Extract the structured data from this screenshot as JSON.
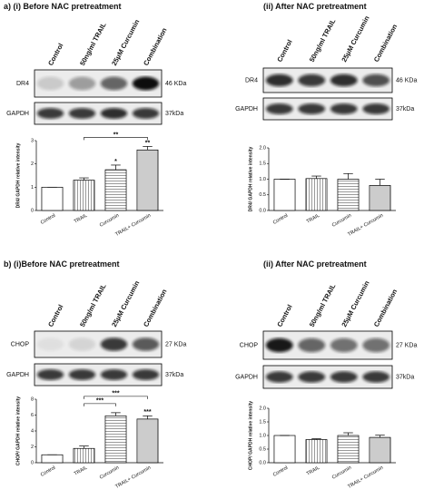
{
  "panels": [
    {
      "title": "a) (i) Before NAC pretreatment",
      "lanes": [
        "Control",
        "50ng/ml TRAIL",
        "25μM Curcumin",
        "Combination"
      ],
      "blots": [
        {
          "label": "DR4",
          "size": "46 KDa"
        },
        {
          "label": "GAPDH",
          "size": "37kDa"
        }
      ]
    },
    {
      "title": "(ii) After NAC pretreatment",
      "lanes": [
        "Control",
        "50ng/ml TRAIL",
        "25μM Curcumin",
        "Combination"
      ],
      "blots": [
        {
          "label": "DR4",
          "size": "46 KDa"
        },
        {
          "label": "GAPDH",
          "size": "37kDa"
        }
      ]
    },
    {
      "title": "b) (i)Before NAC pretreatment",
      "lanes": [
        "Control",
        "50ng/ml TRAIL",
        "25μM Curcumin",
        "Combination"
      ],
      "blots": [
        {
          "label": "CHOP",
          "size": "27 KDa"
        },
        {
          "label": "GAPDH",
          "size": "37kDa"
        }
      ]
    },
    {
      "title": "(ii) After NAC pretreatment",
      "lanes": [
        "Control",
        "50ng/ml TRAIL",
        "25μM Curcumin",
        "Combination"
      ],
      "blots": [
        {
          "label": "CHOP",
          "size": "27 KDa"
        },
        {
          "label": "GAPDH",
          "size": "37kDa"
        }
      ]
    }
  ],
  "chart_data": [
    {
      "type": "bar",
      "y_label": "DR4/ GAPDH relative intensity",
      "categories": [
        "Control",
        "TRAIL",
        "Curcumin",
        "TRAIL+ Curcumin"
      ],
      "values": [
        1,
        1.3,
        1.75,
        2.6
      ],
      "errors": [
        0,
        0.1,
        0.2,
        0.15
      ],
      "ylim": [
        0,
        3
      ],
      "yticks": [
        0,
        1,
        2,
        3
      ],
      "annotations": [
        "*",
        "**",
        "**"
      ]
    },
    {
      "type": "bar",
      "y_label": "DR4/ GAPDH relative intensity",
      "categories": [
        "Control",
        "TRAIL",
        "Curcumin",
        "TRAIL+ Curcumin"
      ],
      "values": [
        1,
        1.02,
        1,
        0.8
      ],
      "errors": [
        0,
        0.08,
        0.18,
        0.2
      ],
      "ylim": [
        0,
        2
      ],
      "yticks": [
        {
          "value": 0,
          "label": "0.0"
        },
        0.5,
        {
          "value": 1,
          "label": "1.0"
        },
        1.5,
        {
          "value": 2,
          "label": "2.0"
        }
      ],
      "annotations": []
    },
    {
      "type": "bar",
      "y_label": "CHOP/ GAPDH relative intensity",
      "categories": [
        "Control",
        "TRAIL",
        "Curcumin",
        "TRAIL+ Curcumin"
      ],
      "values": [
        1,
        1.8,
        5.9,
        5.5
      ],
      "errors": [
        0,
        0.3,
        0.4,
        0.4
      ],
      "ylim": [
        0,
        8
      ],
      "yticks": [
        0,
        2,
        4,
        6,
        8
      ],
      "annotations": [
        "***",
        "***",
        "***"
      ]
    },
    {
      "type": "bar",
      "y_label": "CHOP/ GAPDH relative intensity",
      "categories": [
        "Control",
        "TRAIL",
        "Curcumin",
        "TRAIL+ Curcumin"
      ],
      "values": [
        1,
        0.85,
        1,
        0.93
      ],
      "errors": [
        0,
        0.03,
        0.1,
        0.08
      ],
      "ylim": [
        0,
        2
      ],
      "yticks": [
        {
          "value": 0,
          "label": "0.0"
        },
        0.5,
        {
          "value": 1,
          "label": "1.0"
        },
        1.5,
        {
          "value": 2,
          "label": "2.0"
        }
      ],
      "annotations": []
    }
  ]
}
